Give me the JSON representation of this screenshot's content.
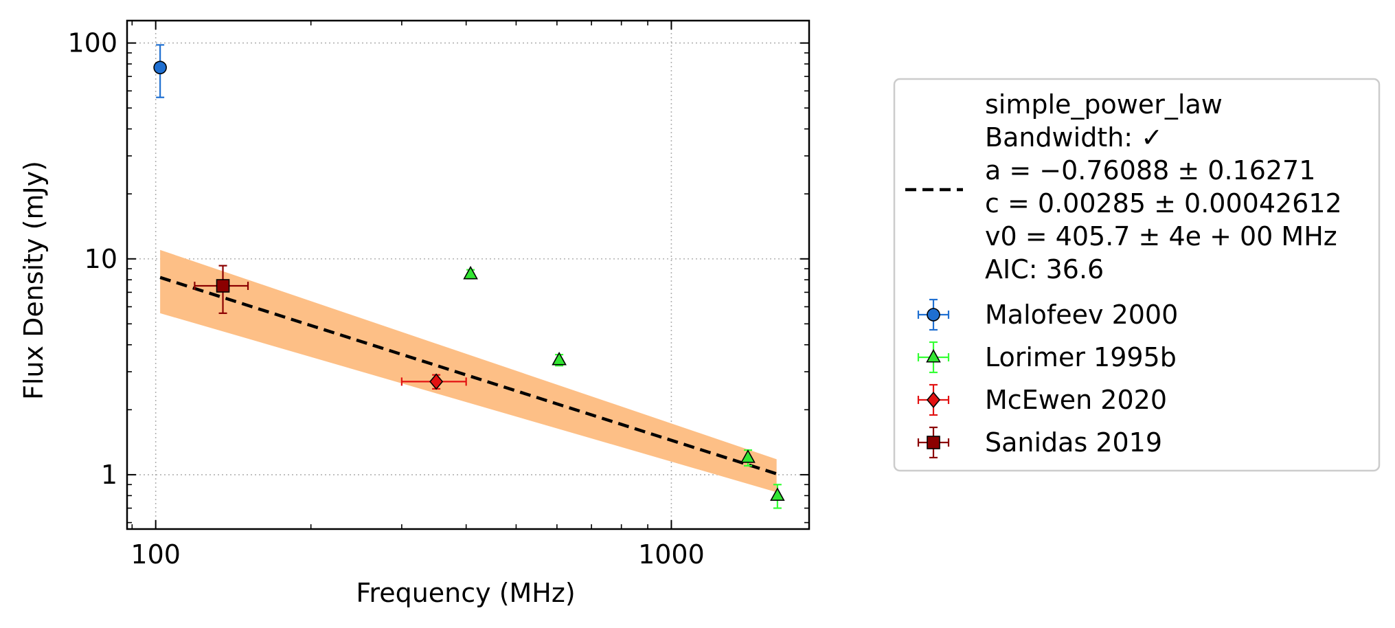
{
  "chart_data": {
    "type": "scatter",
    "xlabel": "Frequency (MHz)",
    "ylabel": "Flux Density (mJy)",
    "xscale": "log",
    "yscale": "log",
    "xlim": [
      88,
      1850
    ],
    "ylim": [
      0.56,
      127
    ],
    "x_ticks": [
      {
        "value": 100,
        "label": "100"
      },
      {
        "value": 1000,
        "label": "1000"
      }
    ],
    "y_ticks": [
      {
        "value": 1,
        "label": "1"
      },
      {
        "value": 10,
        "label": "10"
      },
      {
        "value": 100,
        "label": "100"
      }
    ],
    "grid": true,
    "legend_position": "outside-right",
    "fit": {
      "model": "simple_power_law",
      "label_lines": [
        "simple_power_law",
        "Bandwidth: ✓",
        "a = −0.76088 ± 0.16271",
        "c = 0.00285 ± 0.00042612",
        "v0 = 405.7 ± 4e + 00 MHz",
        "AIC: 36.6"
      ],
      "a": -0.76088,
      "v0": 405.7,
      "x_range": [
        102,
        1600
      ],
      "line_y_at_x_start": 8.2,
      "band": {
        "x": [
          102,
          1600
        ],
        "upper": [
          11.0,
          1.18
        ],
        "lower": [
          5.6,
          0.83
        ]
      },
      "line_color": "#000000",
      "band_color": "#fdbf86"
    },
    "series": [
      {
        "name": "Malofeev 2000",
        "marker": "circle",
        "color": "#1f6fd1",
        "errcolor": "#1f6fd1",
        "points": [
          {
            "x": 102,
            "y": 77,
            "ylo": 56,
            "yhi": 98
          }
        ]
      },
      {
        "name": "Lorimer 1995b",
        "marker": "triangle",
        "color": "#33e633",
        "errcolor": "#33ff33",
        "points": [
          {
            "x": 408,
            "y": 8.5,
            "ylo": 8.1,
            "yhi": 8.9
          },
          {
            "x": 606,
            "y": 3.4,
            "ylo": 3.2,
            "yhi": 3.6
          },
          {
            "x": 1408,
            "y": 1.2,
            "ylo": 1.1,
            "yhi": 1.3
          },
          {
            "x": 1606,
            "y": 0.8,
            "ylo": 0.7,
            "yhi": 0.9
          }
        ]
      },
      {
        "name": "McEwen 2020",
        "marker": "diamond",
        "color": "#e21212",
        "errcolor": "#e21212",
        "points": [
          {
            "x": 350,
            "y": 2.7,
            "ylo": 2.5,
            "yhi": 2.9,
            "xlo": 300,
            "xhi": 400
          }
        ]
      },
      {
        "name": "Sanidas 2019",
        "marker": "square",
        "color": "#8b0000",
        "errcolor": "#8b0000",
        "points": [
          {
            "x": 135,
            "y": 7.5,
            "ylo": 5.6,
            "yhi": 9.3,
            "xlo": 119,
            "xhi": 151
          }
        ]
      }
    ]
  }
}
